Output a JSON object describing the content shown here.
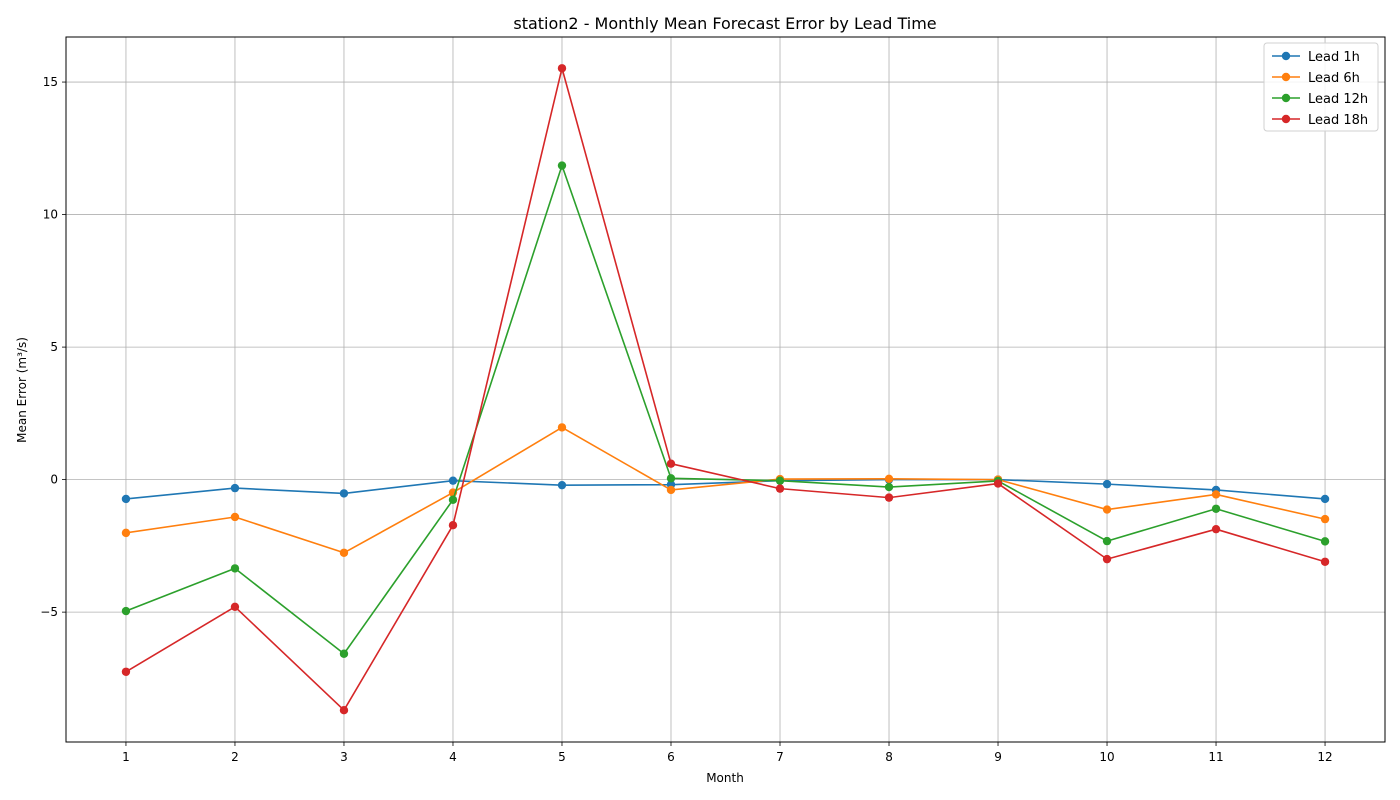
{
  "chart_data": {
    "type": "line",
    "title": "station2 - Monthly Mean Forecast Error by Lead Time",
    "xlabel": "Month",
    "ylabel": "Mean Error (m³/s)",
    "x": [
      1,
      2,
      3,
      4,
      5,
      6,
      7,
      8,
      9,
      10,
      11,
      12
    ],
    "xticks": [
      "1",
      "2",
      "3",
      "4",
      "5",
      "6",
      "7",
      "8",
      "9",
      "10",
      "11",
      "12"
    ],
    "xlim": [
      0.45,
      12.55
    ],
    "ylim": [
      -9.9,
      16.7
    ],
    "yticks": [
      -5,
      0,
      5,
      10,
      15
    ],
    "ytick_labels": [
      "−5",
      "0",
      "5",
      "10",
      "15"
    ],
    "grid": true,
    "legend_position": "top-right",
    "series": [
      {
        "name": "Lead 1h",
        "color": "#1f77b4",
        "values": [
          -0.73,
          -0.32,
          -0.52,
          -0.04,
          -0.21,
          -0.19,
          -0.04,
          0.0,
          0.0,
          -0.17,
          -0.39,
          -0.73
        ]
      },
      {
        "name": "Lead 6h",
        "color": "#ff7f0e",
        "values": [
          -2.01,
          -1.41,
          -2.76,
          -0.49,
          1.97,
          -0.39,
          0.02,
          0.03,
          0.0,
          -1.13,
          -0.56,
          -1.49
        ]
      },
      {
        "name": "Lead 12h",
        "color": "#2ca02c",
        "values": [
          -4.96,
          -3.35,
          -6.57,
          -0.76,
          11.85,
          0.05,
          -0.04,
          -0.28,
          -0.05,
          -2.32,
          -1.1,
          -2.33
        ]
      },
      {
        "name": "Lead 18h",
        "color": "#d62728",
        "values": [
          -7.25,
          -4.8,
          -8.7,
          -1.72,
          15.52,
          0.6,
          -0.34,
          -0.68,
          -0.15,
          -3.0,
          -1.87,
          -3.1
        ]
      }
    ]
  }
}
